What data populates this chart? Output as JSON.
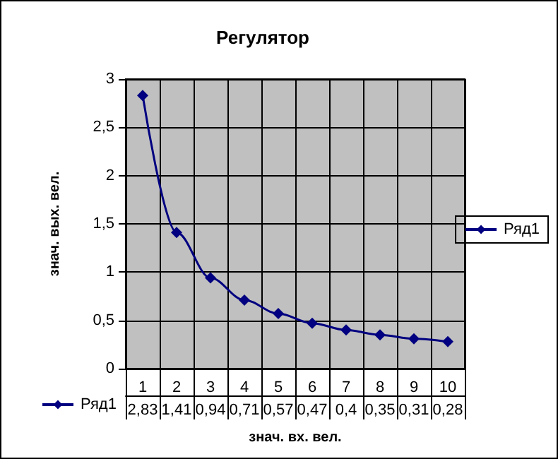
{
  "chart_data": {
    "type": "line",
    "title": "Регулятор",
    "xlabel": "знач. вх. вел.",
    "ylabel": "знач. вых. вел.",
    "categories": [
      "1",
      "2",
      "3",
      "4",
      "5",
      "6",
      "7",
      "8",
      "9",
      "10"
    ],
    "series": [
      {
        "name": "Ряд1",
        "color": "#000080",
        "values": [
          2.83,
          1.41,
          0.94,
          0.71,
          0.57,
          0.47,
          0.4,
          0.35,
          0.31,
          0.28
        ],
        "value_labels": [
          "2,83",
          "1,41",
          "0,94",
          "0,71",
          "0,57",
          "0,47",
          "0,4",
          "0,35",
          "0,31",
          "0,28"
        ]
      }
    ],
    "ylim": [
      0,
      3
    ],
    "yticks": [
      0,
      {
        "value": 0.5,
        "label": "0,5"
      },
      1,
      {
        "value": 1.5,
        "label": "1,5"
      },
      2,
      {
        "value": 2.5,
        "label": "2,5"
      },
      3
    ],
    "grid": true,
    "legend": "right",
    "marker": "diamond",
    "line_style": "solid"
  }
}
